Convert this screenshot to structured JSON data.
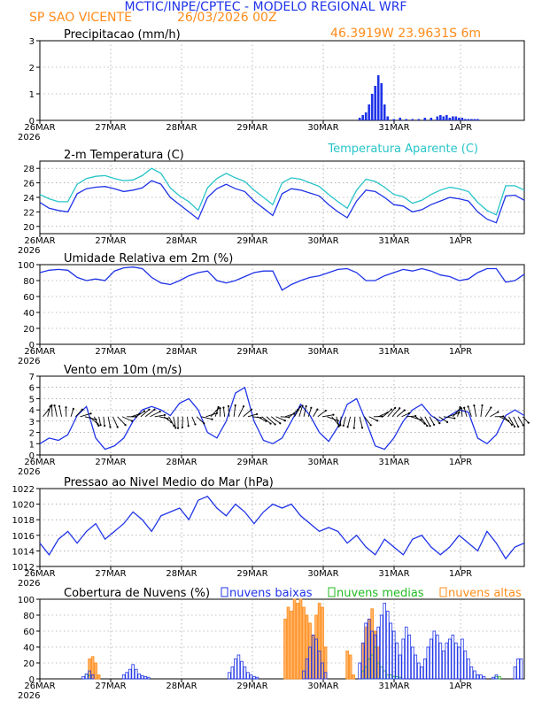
{
  "header": {
    "title": "MCTIC/INPE/CPTEC - MODELO REGIONAL WRF",
    "location": "SP SAO VICENTE",
    "run": "26/03/2026 00Z",
    "coords": "46.3919W  23.9631S  6m"
  },
  "colors": {
    "blue": "#1f33e8",
    "cyan": "#27c4c8",
    "orange": "#ff8c1a",
    "green": "#22bb22",
    "title_blue": "#1f33e8",
    "title_orange": "#ff8c1a",
    "grid": "#888888"
  },
  "x_axis": {
    "labels": [
      "26MAR",
      "27MAR",
      "28MAR",
      "29MAR",
      "30MAR",
      "31MAR",
      "1APR"
    ],
    "year": "2026",
    "hours_total": 156
  },
  "chart_data": [
    {
      "type": "bar",
      "title": "Precipitacao (mm/h)",
      "ylim": [
        0,
        3
      ],
      "yticks": [
        0,
        1,
        2,
        3
      ],
      "x_hours": [
        103,
        104,
        105,
        106,
        107,
        108,
        109,
        110,
        111,
        112,
        114,
        116,
        118,
        120,
        122,
        124,
        126,
        128,
        129,
        130,
        131,
        132,
        133,
        134,
        135,
        136,
        137,
        138,
        139,
        140,
        141
      ],
      "values": [
        0.1,
        0.2,
        0.3,
        0.6,
        1.0,
        1.3,
        1.7,
        1.4,
        0.6,
        0.15,
        0.05,
        0.1,
        0.05,
        0.05,
        0.05,
        0.1,
        0.1,
        0.15,
        0.2,
        0.15,
        0.2,
        0.1,
        0.15,
        0.15,
        0.1,
        0.1,
        0.05,
        0.05,
        0.05,
        0.05,
        0.05
      ]
    },
    {
      "type": "line",
      "title": "2-m Temperatura (C)",
      "title_right": "Temperatura Aparente (C)",
      "ylim": [
        19,
        29
      ],
      "yticks": [
        20,
        22,
        24,
        26,
        28
      ],
      "x_hours": [
        0,
        3,
        6,
        9,
        12,
        15,
        18,
        21,
        24,
        27,
        30,
        33,
        36,
        39,
        42,
        45,
        48,
        51,
        54,
        57,
        60,
        63,
        66,
        69,
        72,
        75,
        78,
        81,
        84,
        87,
        90,
        93,
        96,
        99,
        102,
        105,
        108,
        111,
        114,
        117,
        120,
        123,
        126,
        129,
        132,
        135,
        138,
        141,
        144,
        147,
        150,
        153,
        156
      ],
      "series": [
        {
          "name": "2-m Temperatura",
          "values": [
            23.3,
            22.5,
            22.2,
            22.0,
            24.5,
            25.2,
            25.4,
            25.5,
            25.2,
            24.8,
            25.0,
            25.3,
            26.3,
            25.8,
            24.0,
            23.0,
            22.0,
            21.0,
            24.0,
            25.2,
            25.8,
            25.2,
            24.8,
            23.5,
            22.5,
            21.5,
            24.5,
            25.2,
            25.0,
            24.6,
            24.2,
            23.0,
            22.0,
            21.2,
            23.5,
            25.0,
            24.8,
            24.0,
            23.0,
            22.8,
            22.0,
            22.3,
            23.0,
            23.5,
            24.0,
            23.8,
            23.5,
            22.0,
            21.0,
            20.5,
            24.2,
            24.3,
            23.6
          ]
        },
        {
          "name": "Temperatura Aparente",
          "values": [
            24.4,
            23.8,
            23.4,
            23.4,
            25.8,
            26.6,
            26.9,
            27.0,
            26.6,
            26.3,
            26.4,
            27.0,
            28.0,
            27.3,
            25.3,
            24.2,
            23.4,
            22.2,
            25.3,
            26.6,
            27.3,
            26.7,
            26.2,
            25.0,
            24.0,
            23.0,
            26.0,
            26.7,
            26.5,
            26.0,
            25.5,
            24.4,
            23.4,
            22.5,
            25.0,
            26.5,
            26.2,
            25.4,
            24.4,
            24.1,
            23.2,
            23.6,
            24.4,
            25.0,
            25.4,
            25.2,
            24.8,
            23.3,
            22.2,
            21.6,
            25.6,
            25.6,
            25.0
          ]
        }
      ]
    },
    {
      "type": "line",
      "title": "Umidade Relativa em 2m (%)",
      "ylim": [
        0,
        100
      ],
      "yticks": [
        0,
        20,
        40,
        60,
        80,
        100
      ],
      "x_hours": [
        0,
        3,
        6,
        9,
        12,
        15,
        18,
        21,
        24,
        27,
        30,
        33,
        36,
        39,
        42,
        45,
        48,
        51,
        54,
        57,
        60,
        63,
        66,
        69,
        72,
        75,
        78,
        81,
        84,
        87,
        90,
        93,
        96,
        99,
        102,
        105,
        108,
        111,
        114,
        117,
        120,
        123,
        126,
        129,
        132,
        135,
        138,
        141,
        144,
        147,
        150,
        153,
        156
      ],
      "values": [
        90,
        93,
        94,
        93,
        84,
        80,
        82,
        80,
        92,
        96,
        97,
        95,
        84,
        77,
        75,
        80,
        86,
        90,
        92,
        80,
        77,
        80,
        85,
        90,
        92,
        92,
        68,
        75,
        80,
        84,
        86,
        90,
        94,
        95,
        90,
        80,
        80,
        86,
        90,
        94,
        92,
        95,
        92,
        87,
        85,
        80,
        82,
        90,
        95,
        95,
        78,
        80,
        88
      ]
    },
    {
      "type": "line",
      "title": "Vento em 10m (m/s)",
      "ylim": [
        0,
        7
      ],
      "yticks": [
        0,
        1,
        2,
        3,
        4,
        5,
        6,
        7
      ],
      "x_hours": [
        0,
        3,
        6,
        9,
        12,
        15,
        18,
        21,
        24,
        27,
        30,
        33,
        36,
        39,
        42,
        45,
        48,
        51,
        54,
        57,
        60,
        63,
        66,
        69,
        72,
        75,
        78,
        81,
        84,
        87,
        90,
        93,
        96,
        99,
        102,
        105,
        108,
        111,
        114,
        117,
        120,
        123,
        126,
        129,
        132,
        135,
        138,
        141,
        144,
        147,
        150,
        153,
        156
      ],
      "values": [
        1.0,
        1.5,
        1.3,
        1.8,
        3.5,
        4.3,
        1.5,
        0.5,
        0.8,
        1.5,
        3.0,
        4.0,
        4.3,
        4.0,
        3.5,
        4.6,
        5.0,
        4.0,
        2.0,
        1.5,
        3.0,
        5.5,
        6.0,
        3.0,
        1.3,
        1.0,
        1.5,
        3.0,
        4.5,
        3.5,
        2.0,
        1.2,
        2.5,
        4.5,
        5.0,
        3.0,
        0.8,
        0.5,
        1.5,
        3.0,
        4.0,
        4.5,
        3.5,
        3.0,
        3.5,
        4.0,
        3.8,
        1.5,
        1.0,
        1.8,
        3.5,
        4.0,
        3.5
      ],
      "barbs": "wind direction arrows along the line"
    },
    {
      "type": "line",
      "title": "Pressao ao Nivel Medio do Mar (hPa)",
      "ylim": [
        1012,
        1022
      ],
      "yticks": [
        1012,
        1014,
        1016,
        1018,
        1020,
        1022
      ],
      "x_hours": [
        0,
        3,
        6,
        9,
        12,
        15,
        18,
        21,
        24,
        27,
        30,
        33,
        36,
        39,
        42,
        45,
        48,
        51,
        54,
        57,
        60,
        63,
        66,
        69,
        72,
        75,
        78,
        81,
        84,
        87,
        90,
        93,
        96,
        99,
        102,
        105,
        108,
        111,
        114,
        117,
        120,
        123,
        126,
        129,
        132,
        135,
        138,
        141,
        144,
        147,
        150,
        153,
        156
      ],
      "values": [
        1015.0,
        1013.5,
        1015.5,
        1016.5,
        1015.0,
        1016.5,
        1017.5,
        1015.5,
        1016.5,
        1017.5,
        1019.0,
        1018.0,
        1016.5,
        1018.5,
        1019.0,
        1019.5,
        1018.0,
        1020.5,
        1021.0,
        1019.5,
        1018.5,
        1020.0,
        1019.0,
        1017.5,
        1019.0,
        1020.0,
        1019.5,
        1020.0,
        1018.5,
        1017.5,
        1016.5,
        1017.0,
        1016.5,
        1015.0,
        1016.0,
        1014.5,
        1013.5,
        1015.5,
        1014.5,
        1013.5,
        1015.5,
        1016.0,
        1014.5,
        1013.5,
        1014.5,
        1016.0,
        1015.0,
        1014.0,
        1016.5,
        1015.0,
        1013.0,
        1014.5,
        1015.0
      ]
    },
    {
      "type": "bar",
      "title": "Cobertura de Nuvens (%)",
      "legend": [
        "nuvens baixas",
        "nuvens medias",
        "nuvens altas"
      ],
      "ylim": [
        0,
        100
      ],
      "yticks": [
        0,
        20,
        40,
        60,
        80,
        100
      ],
      "series": [
        {
          "name": "nuvens baixas",
          "x_hours": [
            14,
            15,
            16,
            17,
            27,
            28,
            29,
            30,
            31,
            32,
            33,
            34,
            35,
            61,
            62,
            63,
            64,
            65,
            66,
            67,
            68,
            69,
            70,
            85,
            86,
            87,
            88,
            89,
            90,
            91,
            92,
            103,
            104,
            105,
            106,
            107,
            108,
            109,
            110,
            111,
            112,
            113,
            114,
            115,
            116,
            117,
            118,
            119,
            120,
            121,
            122,
            123,
            124,
            125,
            126,
            127,
            128,
            129,
            130,
            131,
            132,
            133,
            134,
            135,
            136,
            137,
            138,
            139,
            140,
            141,
            142,
            143,
            146,
            147,
            153,
            154,
            155
          ],
          "values": [
            3,
            6,
            10,
            5,
            5,
            8,
            12,
            18,
            12,
            6,
            4,
            3,
            2,
            8,
            15,
            25,
            30,
            22,
            15,
            8,
            5,
            3,
            2,
            10,
            25,
            40,
            55,
            50,
            35,
            20,
            8,
            20,
            45,
            70,
            75,
            60,
            55,
            65,
            80,
            95,
            85,
            70,
            60,
            45,
            30,
            50,
            65,
            55,
            40,
            30,
            20,
            15,
            25,
            40,
            50,
            60,
            55,
            45,
            35,
            45,
            50,
            55,
            45,
            40,
            50,
            35,
            25,
            15,
            10,
            5,
            5,
            3,
            2,
            5,
            15,
            25,
            25
          ]
        },
        {
          "name": "nuvens medias",
          "x_hours": [
            15,
            16,
            104,
            105,
            106,
            107,
            108,
            109,
            110,
            111,
            112,
            113,
            114,
            115,
            116,
            147,
            148
          ],
          "values": [
            6,
            4,
            10,
            15,
            25,
            30,
            40,
            20,
            15,
            10,
            5,
            5,
            3,
            3,
            2,
            3,
            3
          ]
        },
        {
          "name": "nuvens altas",
          "x_hours": [
            16,
            17,
            18,
            19,
            79,
            80,
            81,
            82,
            83,
            84,
            85,
            86,
            87,
            88,
            89,
            90,
            91,
            92,
            99,
            100,
            101,
            104,
            105,
            106,
            107,
            108,
            109
          ],
          "values": [
            25,
            28,
            20,
            5,
            75,
            90,
            85,
            100,
            95,
            100,
            90,
            80,
            70,
            55,
            80,
            95,
            90,
            40,
            35,
            30,
            5,
            45,
            65,
            75,
            88,
            60,
            40
          ]
        }
      ]
    }
  ]
}
